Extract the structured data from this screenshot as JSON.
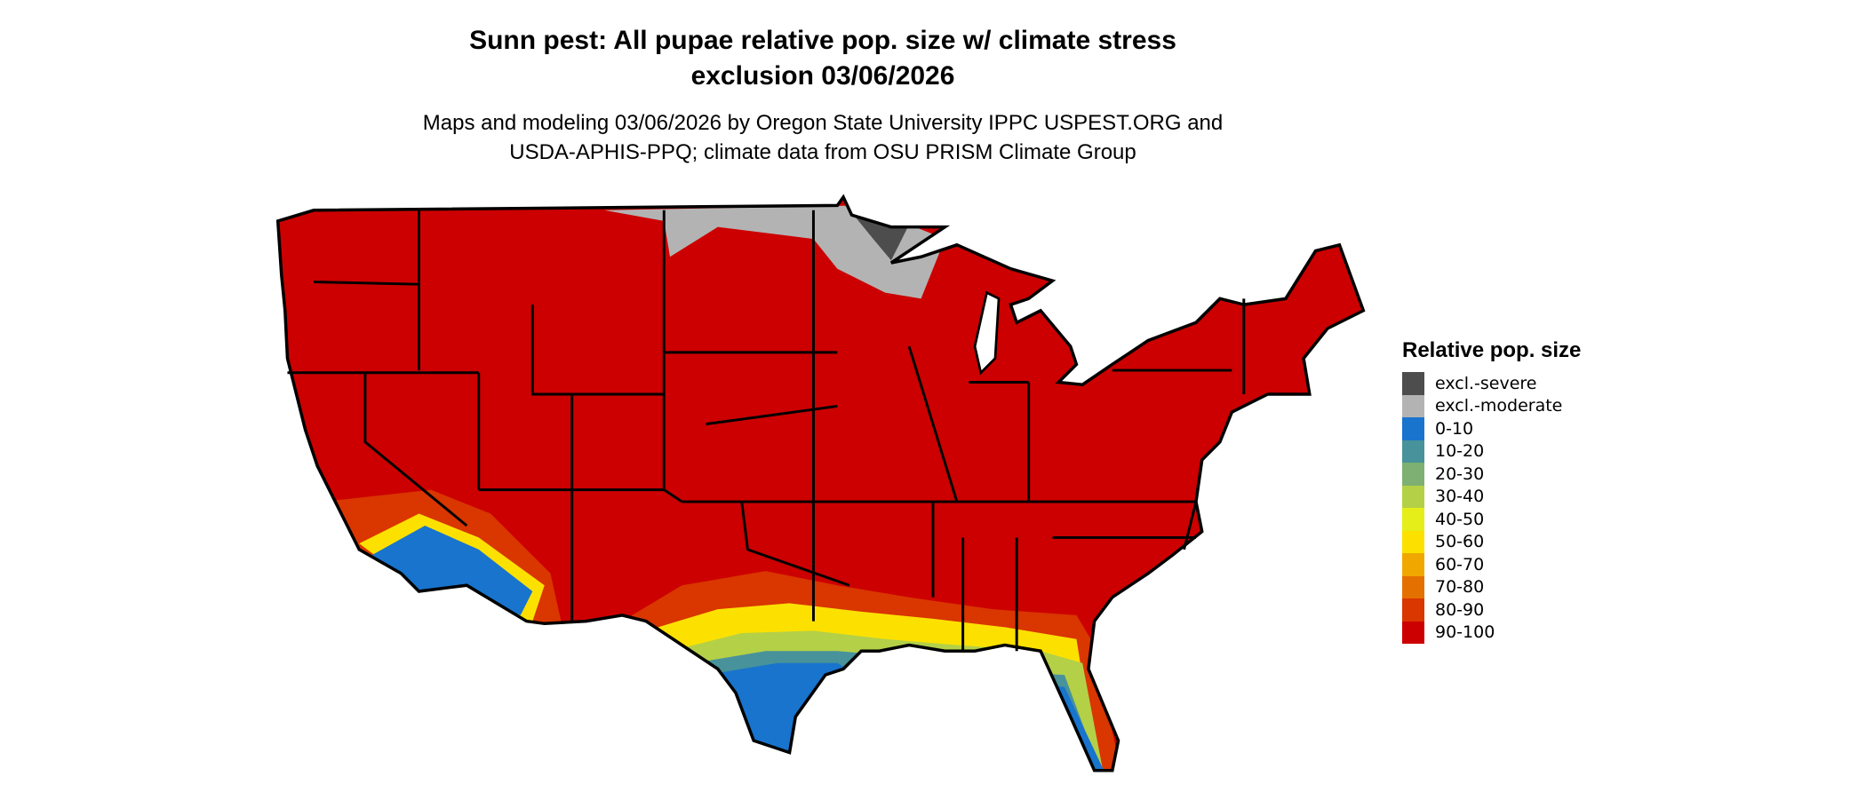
{
  "title": {
    "line1": "Sunn pest: All pupae relative pop. size w/ climate stress",
    "line2": "exclusion 03/06/2026"
  },
  "subtitle": {
    "line1": "Maps and modeling 03/06/2026 by Oregon State University IPPC USPEST.ORG and",
    "line2": "USDA-APHIS-PPQ; climate data from OSU PRISM Climate Group"
  },
  "map": {
    "region": "Contiguous United States",
    "dominant_class": "90-100",
    "state_border_color": "#000000"
  },
  "legend": {
    "title": "Relative pop. size",
    "items": [
      {
        "label": "excl.-severe",
        "color": "#4d4d4d"
      },
      {
        "label": "excl.-moderate",
        "color": "#b3b3b3"
      },
      {
        "label": "0-10",
        "color": "#1874cd"
      },
      {
        "label": "10-20",
        "color": "#48929b"
      },
      {
        "label": "20-30",
        "color": "#7db072"
      },
      {
        "label": "30-40",
        "color": "#b4d047"
      },
      {
        "label": "40-50",
        "color": "#e6ee1a"
      },
      {
        "label": "50-60",
        "color": "#fce100"
      },
      {
        "label": "60-70",
        "color": "#f0a800"
      },
      {
        "label": "70-80",
        "color": "#e47000"
      },
      {
        "label": "80-90",
        "color": "#d93600"
      },
      {
        "label": "90-100",
        "color": "#cc0000"
      }
    ]
  }
}
